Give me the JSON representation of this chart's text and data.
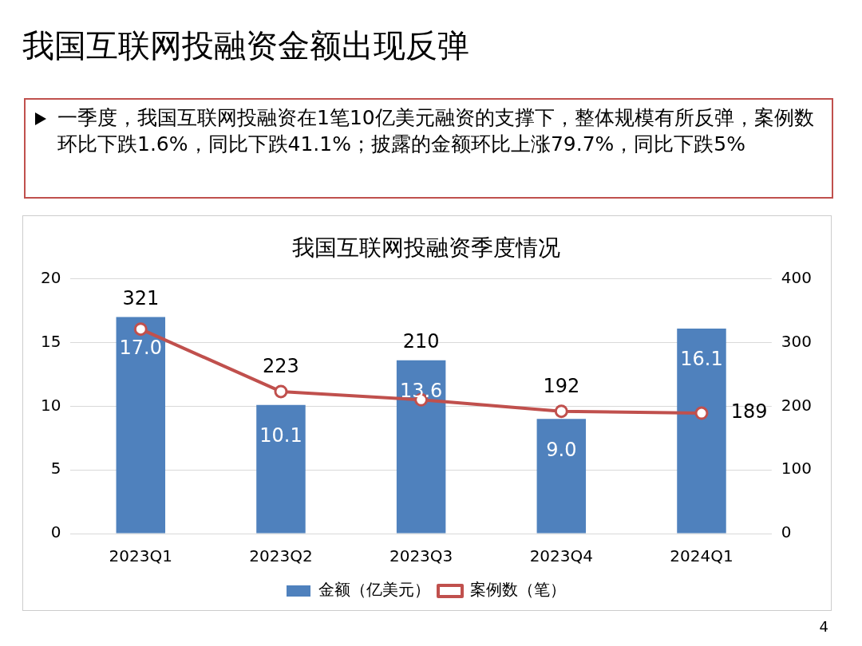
{
  "chart_data": {
    "type": "bar",
    "title": "我国互联网投融资季度情况",
    "annotations": [
      "我国互联网投融资金额出现反弹",
      "一季度，我国互联网投融资在1笔10亿美元融资的支撑下，整体规模有所反弹，案例数环比下跌1.6%，同比下跌41.1%；披露的金额环比上涨79.7%，同比下跌5%",
      "4"
    ],
    "categories": [
      "2023Q1",
      "2023Q2",
      "2023Q3",
      "2023Q4",
      "2024Q1"
    ],
    "series": [
      {
        "name": "金额（亿美元）",
        "color": "#4f81bd",
        "values": [
          17.0,
          10.1,
          13.6,
          9.0,
          16.1
        ],
        "value_labels": [
          "17.0",
          "10.1",
          "13.6",
          "9.0",
          "16.1"
        ]
      },
      {
        "name": "案例数（笔）",
        "type": "line",
        "axis": "y2",
        "color": "#c0504d",
        "marker": "circle",
        "values": [
          321,
          223,
          210,
          192,
          189
        ],
        "value_labels": [
          "321",
          "223",
          "210",
          "192",
          "189"
        ]
      }
    ],
    "ylim": [
      0,
      20
    ],
    "yticks": [
      0,
      5,
      10,
      15,
      20
    ],
    "y2lim": [
      0,
      400
    ],
    "y2ticks": [
      0,
      100,
      200,
      300,
      400
    ],
    "grid": "y",
    "legend": "bottom"
  }
}
